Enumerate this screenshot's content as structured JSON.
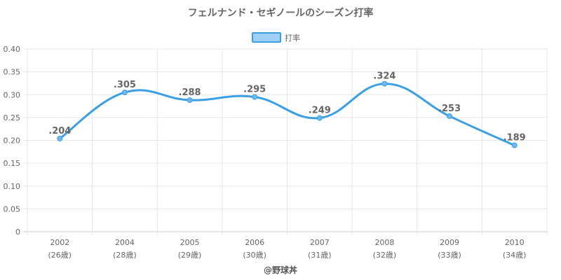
{
  "chart_data": {
    "type": "line",
    "title": "フェルナンド・セギノールのシーズン打率",
    "categories": [
      "2002",
      "2004",
      "2005",
      "2006",
      "2007",
      "2008",
      "2009",
      "2010"
    ],
    "age_labels": [
      "(26歳)",
      "(28歳)",
      "(29歳)",
      "(30歳)",
      "(31歳)",
      "(32歳)",
      "(33歳)",
      "(34歳)"
    ],
    "series": [
      {
        "name": "打率",
        "values": [
          0.204,
          0.305,
          0.288,
          0.295,
          0.249,
          0.324,
          0.253,
          0.189
        ],
        "labels": [
          ".204",
          ".305",
          ".288",
          ".295",
          ".249",
          ".324",
          ".253",
          ".189"
        ],
        "color": "#3b9fe3",
        "fill": "#9fd0f3"
      }
    ],
    "ylim": [
      0,
      0.4
    ],
    "yticks": [
      "0",
      "0.05",
      "0.10",
      "0.15",
      "0.20",
      "0.25",
      "0.30",
      "0.35",
      "0.40"
    ],
    "grid": true,
    "legend_position": "top"
  },
  "credit": "@野球丼"
}
